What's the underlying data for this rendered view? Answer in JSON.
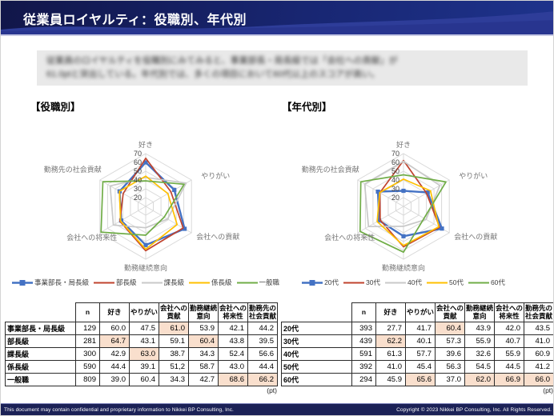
{
  "header": {
    "title": "従業員ロイヤルティ：役職別、年代別"
  },
  "summary": {
    "line1": "従業員のロイヤルティを役職別にみてみると、事業部長・局長級では「会社への貢献」が",
    "line2": "61.0ptと突出している。年代別では、多くの項目において60代以上のスコアが高い。"
  },
  "sections": {
    "left": "【役職別】",
    "right": "【年代別】"
  },
  "colors": {
    "highlight": "#f9dfcd",
    "grid": "#d9d9d9",
    "header_navy": "#161b52",
    "wave_blue": "#2e3d99"
  },
  "chart_data": [
    {
      "type": "radar",
      "title": "役職別",
      "categories": [
        "好き",
        "やりがい",
        "会社への貢献",
        "勤務継続意向",
        "会社への将来性",
        "勤務先の社会貢献"
      ],
      "axis": {
        "min": 10,
        "max": 70,
        "ticks": [
          20,
          30,
          40,
          50,
          60,
          70
        ]
      },
      "legend_position": "bottom",
      "grid": true,
      "series": [
        {
          "name": "事業部長・局長級",
          "color": "#4472c4",
          "marker": "square",
          "values": [
            60.0,
            47.5,
            61.0,
            53.9,
            42.1,
            44.2
          ]
        },
        {
          "name": "部長級",
          "color": "#c0432e",
          "values": [
            64.7,
            43.1,
            59.1,
            60.4,
            43.8,
            39.5
          ]
        },
        {
          "name": "課長級",
          "color": "#c9c9c9",
          "values": [
            42.9,
            63.0,
            38.7,
            34.3,
            52.4,
            56.6
          ]
        },
        {
          "name": "係長級",
          "color": "#ffc000",
          "values": [
            44.4,
            39.1,
            51.2,
            58.7,
            43.0,
            44.4
          ]
        },
        {
          "name": "一般職",
          "color": "#70ad47",
          "values": [
            39.0,
            60.4,
            34.3,
            42.7,
            68.6,
            66.2
          ]
        }
      ]
    },
    {
      "type": "radar",
      "title": "年代別",
      "categories": [
        "好き",
        "やりがい",
        "会社への貢献",
        "勤務継続意向",
        "会社への将来性",
        "勤務先の社会貢献"
      ],
      "axis": {
        "min": 10,
        "max": 70,
        "ticks": [
          20,
          30,
          40,
          50,
          60,
          70
        ]
      },
      "legend_position": "bottom",
      "grid": true,
      "series": [
        {
          "name": "20代",
          "color": "#4472c4",
          "marker": "square",
          "values": [
            27.7,
            41.7,
            60.4,
            43.9,
            42.0,
            43.5
          ]
        },
        {
          "name": "30代",
          "color": "#c0432e",
          "values": [
            62.2,
            40.1,
            57.3,
            55.9,
            40.7,
            41.0
          ]
        },
        {
          "name": "40代",
          "color": "#c9c9c9",
          "values": [
            61.3,
            57.7,
            39.6,
            32.6,
            55.9,
            60.9
          ]
        },
        {
          "name": "50代",
          "color": "#ffc000",
          "values": [
            41.0,
            45.4,
            56.3,
            54.5,
            44.5,
            41.2
          ]
        },
        {
          "name": "60代",
          "color": "#70ad47",
          "values": [
            45.9,
            65.6,
            37.0,
            62.0,
            66.9,
            66.0
          ]
        }
      ]
    }
  ],
  "tables": [
    {
      "unit": "(pt)",
      "headers": [
        "",
        "n",
        "好き",
        "やりがい",
        "会社への貢献",
        "勤務継続意向",
        "会社への将来性",
        "勤務先の社会貢献"
      ],
      "rows": [
        {
          "label": "事業部長・局長級",
          "n": "129",
          "values": [
            "60.0",
            "47.5",
            "61.0",
            "53.9",
            "42.1",
            "44.2"
          ],
          "highlight": [
            2
          ]
        },
        {
          "label": "部長級",
          "n": "281",
          "values": [
            "64.7",
            "43.1",
            "59.1",
            "60.4",
            "43.8",
            "39.5"
          ],
          "highlight": [
            0,
            3
          ]
        },
        {
          "label": "課長級",
          "n": "300",
          "values": [
            "42.9",
            "63.0",
            "38.7",
            "34.3",
            "52.4",
            "56.6"
          ],
          "highlight": [
            1
          ]
        },
        {
          "label": "係長級",
          "n": "590",
          "values": [
            "44.4",
            "39.1",
            "51,2",
            "58.7",
            "43.0",
            "44.4"
          ],
          "highlight": []
        },
        {
          "label": "一般職",
          "n": "809",
          "values": [
            "39.0",
            "60.4",
            "34.3",
            "42.7",
            "68.6",
            "66.2"
          ],
          "highlight": [
            4,
            5
          ]
        }
      ]
    },
    {
      "unit": "(pt)",
      "headers": [
        "",
        "n",
        "好き",
        "やりがい",
        "会社への貢献",
        "勤務継続意向",
        "会社への将来性",
        "勤務先の社会貢献"
      ],
      "rows": [
        {
          "label": "20代",
          "n": "393",
          "values": [
            "27.7",
            "41.7",
            "60.4",
            "43.9",
            "42.0",
            "43.5"
          ],
          "highlight": [
            2
          ]
        },
        {
          "label": "30代",
          "n": "439",
          "values": [
            "62.2",
            "40.1",
            "57.3",
            "55.9",
            "40.7",
            "41.0"
          ],
          "highlight": [
            0
          ]
        },
        {
          "label": "40代",
          "n": "591",
          "values": [
            "61.3",
            "57.7",
            "39.6",
            "32.6",
            "55.9",
            "60.9"
          ],
          "highlight": []
        },
        {
          "label": "50代",
          "n": "392",
          "values": [
            "41.0",
            "45.4",
            "56.3",
            "54.5",
            "44.5",
            "41.2"
          ],
          "highlight": []
        },
        {
          "label": "60代",
          "n": "294",
          "values": [
            "45.9",
            "65.6",
            "37.0",
            "62.0",
            "66.9",
            "66.0"
          ],
          "highlight": [
            1,
            3,
            4,
            5
          ]
        }
      ]
    }
  ],
  "footer": {
    "left": "This document may contain confidential and proprietary information to Nikkei BP Consulting, Inc.",
    "right": "Copyright © 2023 Nikkei BP Consulting, Inc. All Rights Reserved."
  }
}
